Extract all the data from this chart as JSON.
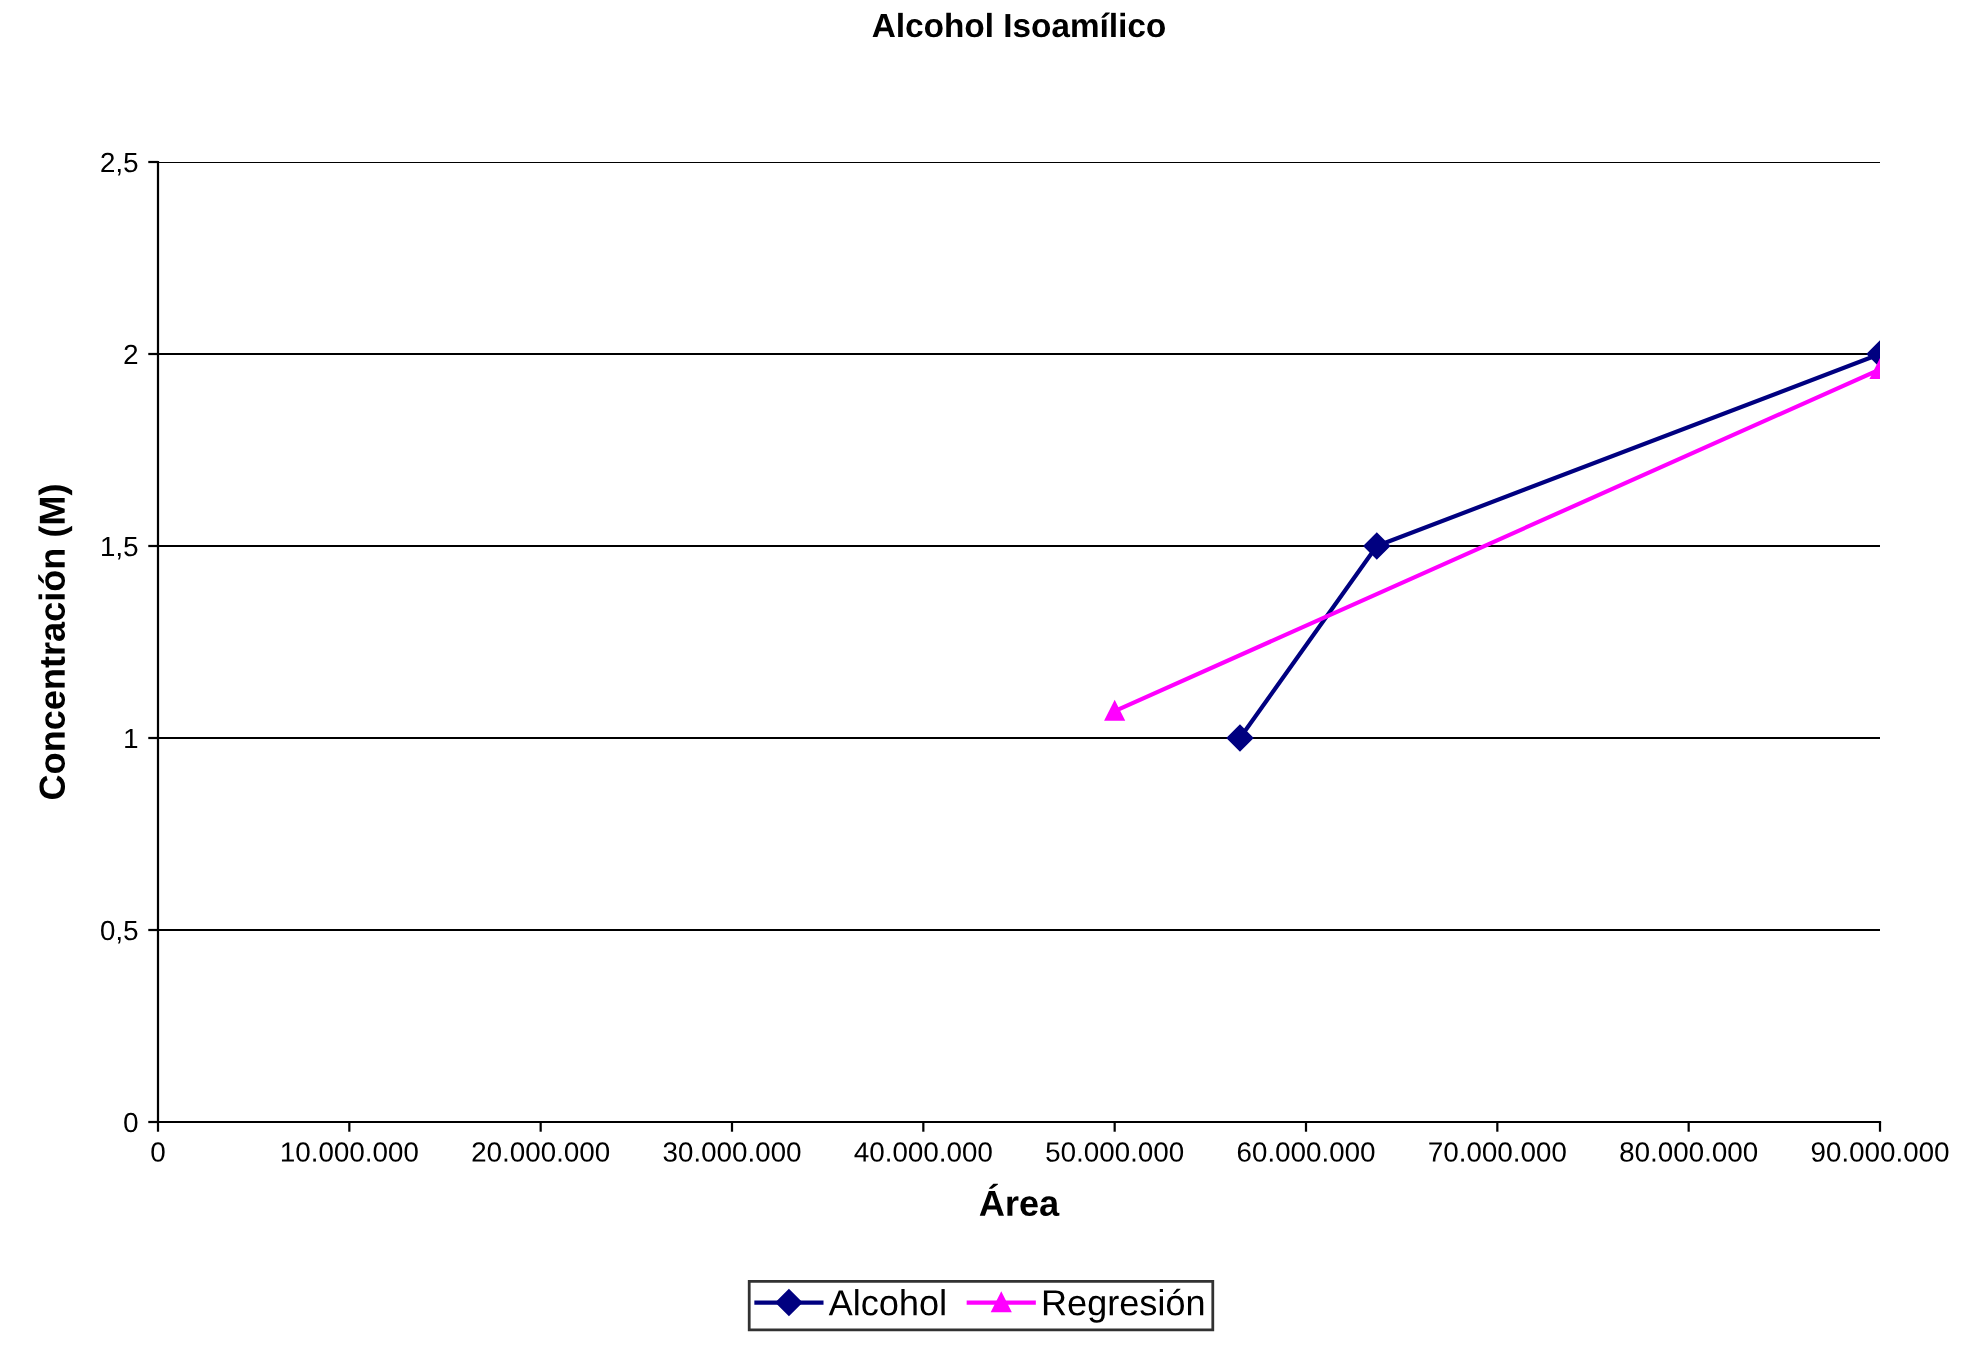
{
  "chart_data": {
    "type": "line",
    "title": "Alcohol Isoamílico",
    "xlabel": "Área",
    "ylabel": "Concentración (M)",
    "series": [
      {
        "name": "Alcohol",
        "color": "#000080",
        "marker": "diamond",
        "x": [
          56550000,
          63700000,
          90000000
        ],
        "values": [
          1,
          1.5,
          2
        ]
      },
      {
        "name": "Regresión",
        "color": "#ff00ff",
        "marker": "triangle",
        "x": [
          50000000,
          90000000
        ],
        "values": [
          1.07,
          1.96
        ]
      }
    ],
    "xlim": [
      0,
      90000000
    ],
    "xticks": [
      0,
      {
        "value": 10000000,
        "label": "10.000.000"
      },
      {
        "value": 20000000,
        "label": "20.000.000"
      },
      {
        "value": 30000000,
        "label": "30.000.000"
      },
      {
        "value": 40000000,
        "label": "40.000.000"
      },
      {
        "value": 50000000,
        "label": "50.000.000"
      },
      {
        "value": 60000000,
        "label": "60.000.000"
      },
      {
        "value": 70000000,
        "label": "70.000.000"
      },
      {
        "value": 80000000,
        "label": "80.000.000"
      },
      {
        "value": 90000000,
        "label": "90.000.000"
      }
    ],
    "ylim": [
      0,
      2.5
    ],
    "yticks": [
      0,
      {
        "value": 0.5,
        "label": "0,5"
      },
      1,
      {
        "value": 1.5,
        "label": "1,5"
      },
      2,
      {
        "value": 2.5,
        "label": "2,5"
      }
    ],
    "grid": "y",
    "legend": "bottom"
  }
}
